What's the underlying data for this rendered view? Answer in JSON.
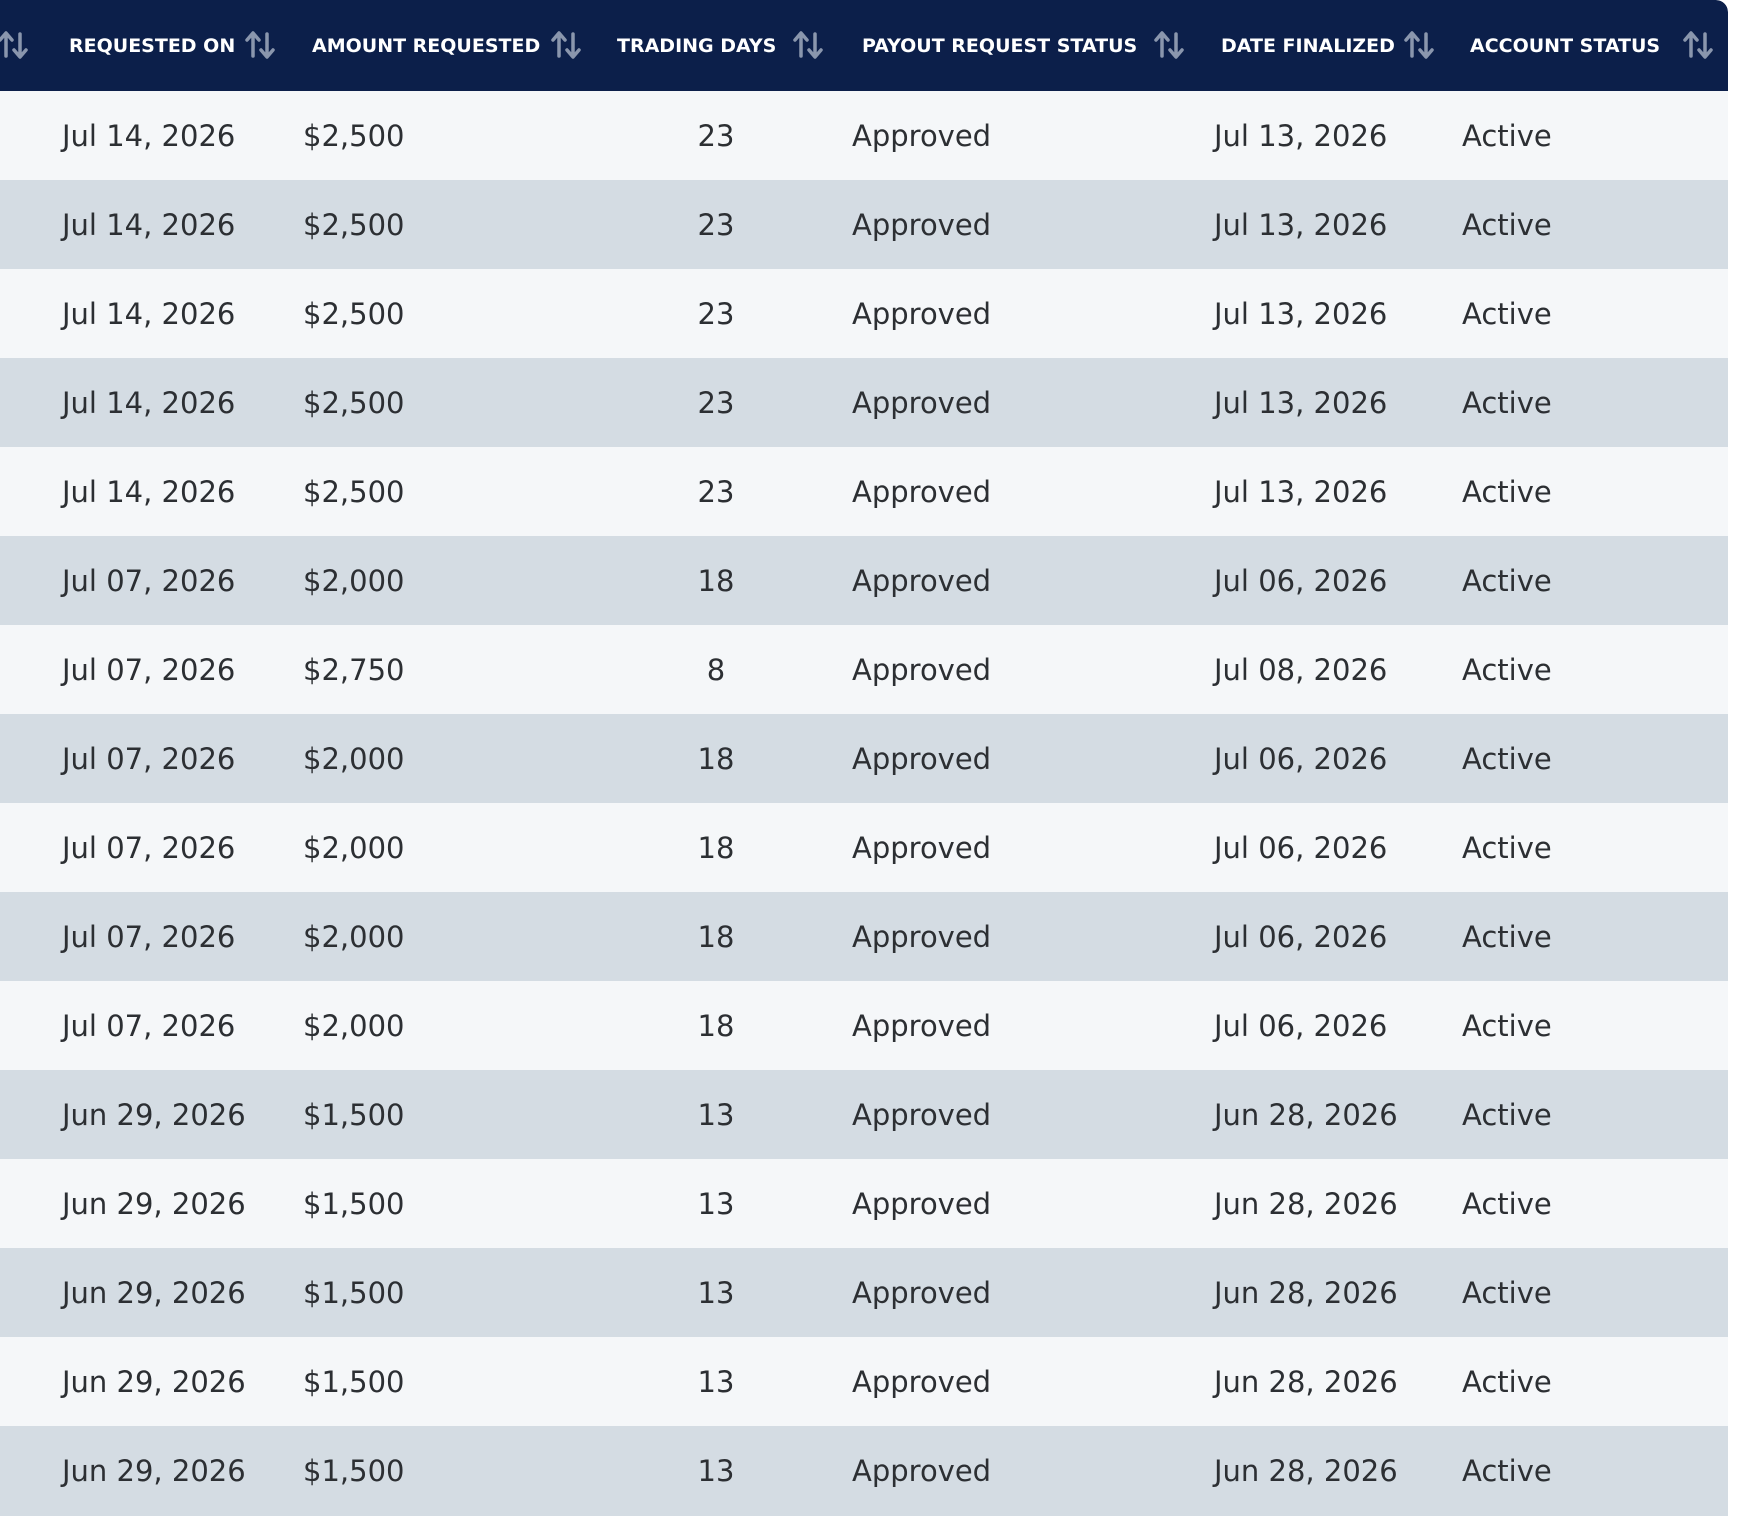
{
  "table": {
    "headers": [
      {
        "label": "REQUESTED ON",
        "icon": "sort-arrows-icon"
      },
      {
        "label": "AMOUNT REQUESTED",
        "icon": "sort-arrows-icon"
      },
      {
        "label": "TRADING DAYS",
        "icon": "sort-arrows-icon"
      },
      {
        "label": "PAYOUT REQUEST STATUS",
        "icon": "sort-arrows-icon"
      },
      {
        "label": "DATE FINALIZED",
        "icon": "sort-arrows-icon"
      },
      {
        "label": "ACCOUNT STATUS",
        "icon": "sort-arrows-icon"
      }
    ],
    "rows": [
      {
        "requested_on": "Jul 14, 2026",
        "amount": "$2,500",
        "trading_days": "23",
        "payout_status": "Approved",
        "date_finalized": "Jul 13, 2026",
        "account_status": "Active"
      },
      {
        "requested_on": "Jul 14, 2026",
        "amount": "$2,500",
        "trading_days": "23",
        "payout_status": "Approved",
        "date_finalized": "Jul 13, 2026",
        "account_status": "Active"
      },
      {
        "requested_on": "Jul 14, 2026",
        "amount": "$2,500",
        "trading_days": "23",
        "payout_status": "Approved",
        "date_finalized": "Jul 13, 2026",
        "account_status": "Active"
      },
      {
        "requested_on": "Jul 14, 2026",
        "amount": "$2,500",
        "trading_days": "23",
        "payout_status": "Approved",
        "date_finalized": "Jul 13, 2026",
        "account_status": "Active"
      },
      {
        "requested_on": "Jul 14, 2026",
        "amount": "$2,500",
        "trading_days": "23",
        "payout_status": "Approved",
        "date_finalized": "Jul 13, 2026",
        "account_status": "Active"
      },
      {
        "requested_on": "Jul 07, 2026",
        "amount": "$2,000",
        "trading_days": "18",
        "payout_status": "Approved",
        "date_finalized": "Jul 06, 2026",
        "account_status": "Active"
      },
      {
        "requested_on": "Jul 07, 2026",
        "amount": "$2,750",
        "trading_days": "8",
        "payout_status": "Approved",
        "date_finalized": "Jul 08, 2026",
        "account_status": "Active"
      },
      {
        "requested_on": "Jul 07, 2026",
        "amount": "$2,000",
        "trading_days": "18",
        "payout_status": "Approved",
        "date_finalized": "Jul 06, 2026",
        "account_status": "Active"
      },
      {
        "requested_on": "Jul 07, 2026",
        "amount": "$2,000",
        "trading_days": "18",
        "payout_status": "Approved",
        "date_finalized": "Jul 06, 2026",
        "account_status": "Active"
      },
      {
        "requested_on": "Jul 07, 2026",
        "amount": "$2,000",
        "trading_days": "18",
        "payout_status": "Approved",
        "date_finalized": "Jul 06, 2026",
        "account_status": "Active"
      },
      {
        "requested_on": "Jul 07, 2026",
        "amount": "$2,000",
        "trading_days": "18",
        "payout_status": "Approved",
        "date_finalized": "Jul 06, 2026",
        "account_status": "Active"
      },
      {
        "requested_on": "Jun 29, 2026",
        "amount": "$1,500",
        "trading_days": "13",
        "payout_status": "Approved",
        "date_finalized": "Jun 28, 2026",
        "account_status": "Active"
      },
      {
        "requested_on": "Jun 29, 2026",
        "amount": "$1,500",
        "trading_days": "13",
        "payout_status": "Approved",
        "date_finalized": "Jun 28, 2026",
        "account_status": "Active"
      },
      {
        "requested_on": "Jun 29, 2026",
        "amount": "$1,500",
        "trading_days": "13",
        "payout_status": "Approved",
        "date_finalized": "Jun 28, 2026",
        "account_status": "Active"
      },
      {
        "requested_on": "Jun 29, 2026",
        "amount": "$1,500",
        "trading_days": "13",
        "payout_status": "Approved",
        "date_finalized": "Jun 28, 2026",
        "account_status": "Active"
      },
      {
        "requested_on": "Jun 29, 2026",
        "amount": "$1,500",
        "trading_days": "13",
        "payout_status": "Approved",
        "date_finalized": "Jun 28, 2026",
        "account_status": "Active"
      }
    ]
  },
  "colors": {
    "header_bg": "#0c1f4a",
    "header_text": "#ffffff",
    "sort_icon": "#8a96ad",
    "row_light": "#f5f7f9",
    "row_dark": "#d4dce3",
    "cell_text": "#2c2f33"
  }
}
